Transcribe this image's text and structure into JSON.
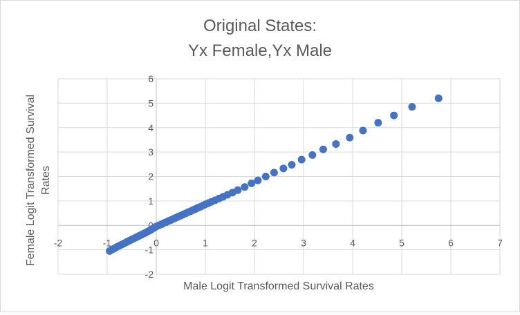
{
  "chart_data": {
    "type": "scatter",
    "title_lines": [
      "Original States:",
      "Yx Female,Yx Male"
    ],
    "xlabel": "Male Logit Transformed Survival Rates",
    "ylabel_lines": [
      "Female  Logit Transformed  Survival",
      "Rates"
    ],
    "xlim": [
      -2,
      7
    ],
    "ylim": [
      -2,
      6
    ],
    "xticks": [
      "-2",
      "-1",
      "0",
      "1",
      "2",
      "3",
      "4",
      "5",
      "6",
      "7"
    ],
    "yticks": [
      "-2",
      "-1",
      "0",
      "1",
      "2",
      "3",
      "4",
      "5",
      "6"
    ],
    "grid": true,
    "marker_color": "#4472C4",
    "series": [
      {
        "name": "Yx Female,Yx Male",
        "x": [
          -0.95,
          -0.9,
          -0.85,
          -0.8,
          -0.75,
          -0.7,
          -0.65,
          -0.6,
          -0.55,
          -0.5,
          -0.45,
          -0.4,
          -0.35,
          -0.3,
          -0.25,
          -0.2,
          -0.15,
          -0.1,
          -0.05,
          0,
          0.05,
          0.1,
          0.15,
          0.2,
          0.25,
          0.3,
          0.35,
          0.4,
          0.45,
          0.5,
          0.55,
          0.6,
          0.65,
          0.7,
          0.75,
          0.8,
          0.85,
          0.9,
          0.95,
          1.0,
          1.06,
          1.12,
          1.2,
          1.28,
          1.36,
          1.45,
          1.55,
          1.66,
          1.8,
          1.94,
          2.07,
          2.23,
          2.4,
          2.59,
          2.76,
          2.96,
          3.18,
          3.4,
          3.66,
          3.94,
          4.21,
          4.52,
          4.84,
          5.21,
          5.75
        ],
        "y": [
          -1.05,
          -0.99,
          -0.94,
          -0.88,
          -0.83,
          -0.78,
          -0.73,
          -0.68,
          -0.63,
          -0.58,
          -0.53,
          -0.48,
          -0.43,
          -0.38,
          -0.33,
          -0.28,
          -0.23,
          -0.17,
          -0.11,
          -0.05,
          0.0,
          0.04,
          0.09,
          0.13,
          0.18,
          0.22,
          0.27,
          0.31,
          0.36,
          0.4,
          0.45,
          0.49,
          0.54,
          0.58,
          0.63,
          0.67,
          0.72,
          0.76,
          0.81,
          0.86,
          0.91,
          0.96,
          1.03,
          1.1,
          1.17,
          1.25,
          1.34,
          1.44,
          1.57,
          1.72,
          1.84,
          2.0,
          2.16,
          2.33,
          2.48,
          2.69,
          2.88,
          3.11,
          3.33,
          3.59,
          3.88,
          4.2,
          4.5,
          4.85,
          5.2
        ]
      }
    ]
  }
}
